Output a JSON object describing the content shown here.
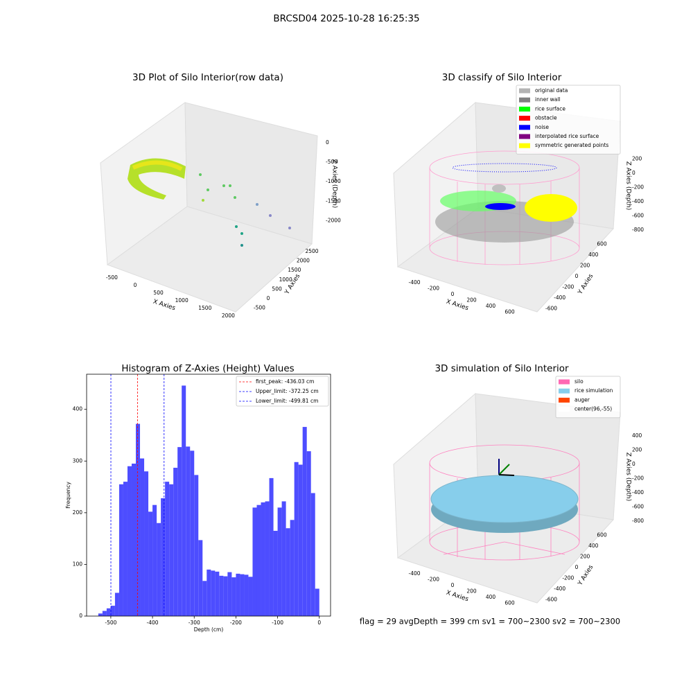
{
  "title": "BRCSD04 2025-10-28 16:25:35",
  "chart_data": [
    {
      "type": "scatter3d",
      "title": "3D Plot of Silo Interior(row data)",
      "xlabel": "X Axies",
      "ylabel": "Y Axies",
      "zlabel": "Z Axies (Depth)",
      "xticks": [
        -500,
        0,
        500,
        1000,
        1500,
        2000
      ],
      "yticks": [
        -500,
        0,
        500,
        1000,
        1500,
        2000,
        2500
      ],
      "zticks": [
        0,
        -500,
        -1000,
        -1500,
        -2000
      ]
    },
    {
      "type": "scatter3d",
      "title": "3D classify of Silo Interior",
      "xlabel": "X Axies",
      "ylabel": "Y Axies",
      "zlabel": "Z Axies (Depth)",
      "xticks": [
        -400,
        -200,
        0,
        200,
        400,
        600
      ],
      "yticks": [
        -600,
        -400,
        -200,
        0,
        200,
        400,
        600
      ],
      "zticks": [
        200,
        0,
        -200,
        -400,
        -600,
        -800
      ],
      "legend": [
        {
          "name": "original data",
          "color": "#b3b3b3"
        },
        {
          "name": "inner wall",
          "color": "#808080"
        },
        {
          "name": "rice surface",
          "color": "#00ff00"
        },
        {
          "name": "obstacle",
          "color": "#ff0000"
        },
        {
          "name": "noise",
          "color": "#0000ff"
        },
        {
          "name": "interpolated rice surface",
          "color": "#800080"
        },
        {
          "name": "symmetric generated points",
          "color": "#ffff00"
        }
      ]
    },
    {
      "type": "histogram",
      "title": "Histogram of Z-Axies (Height) Values",
      "xlabel": "Depth (cm)",
      "ylabel": "Frequency",
      "color": "#4d4dff",
      "bins": [
        -530,
        -520,
        -510,
        -500,
        -490,
        -480,
        -470,
        -460,
        -450,
        -440,
        -430,
        -420,
        -410,
        -400,
        -390,
        -380,
        -370,
        -360,
        -350,
        -340,
        -330,
        -320,
        -310,
        -300,
        -290,
        -280,
        -270,
        -260,
        -250,
        -240,
        -230,
        -220,
        -210,
        -200,
        -190,
        -180,
        -170,
        -160,
        -150,
        -140,
        -130,
        -120,
        -110,
        -100,
        -90,
        -80,
        -70,
        -60,
        -50,
        -40,
        -30,
        -20,
        -10,
        0
      ],
      "values": [
        5,
        10,
        15,
        20,
        45,
        255,
        260,
        290,
        295,
        372,
        305,
        280,
        202,
        215,
        180,
        228,
        260,
        255,
        287,
        327,
        446,
        328,
        320,
        273,
        147,
        68,
        90,
        88,
        86,
        78,
        77,
        85,
        75,
        82,
        81,
        80,
        76,
        210,
        215,
        220,
        222,
        267,
        165,
        210,
        222,
        170,
        186,
        298,
        293,
        366,
        319,
        238,
        53
      ],
      "xlim": [
        -558,
        27
      ],
      "ylim": [
        0,
        468
      ],
      "xticks": [
        -500,
        -400,
        -300,
        -200,
        -100,
        0
      ],
      "yticks": [
        0,
        100,
        200,
        300,
        400
      ],
      "lines": [
        {
          "label": "first_peak: -436.03 cm",
          "value": -436.03,
          "color": "#ff0000"
        },
        {
          "label": "Upper_limit: -372.25 cm",
          "value": -372.25,
          "color": "#0000ff"
        },
        {
          "label": "Lower_limit: -499.81 cm",
          "value": -499.81,
          "color": "#0000ff"
        }
      ]
    },
    {
      "type": "scatter3d",
      "title": "3D simulation of Silo Interior",
      "xlabel": "X Axies",
      "ylabel": "Y Axies",
      "zlabel": "Z Axies (Depth)",
      "xticks": [
        -400,
        -200,
        0,
        200,
        400,
        600
      ],
      "yticks": [
        -600,
        -400,
        -200,
        0,
        200,
        400,
        600
      ],
      "zticks": [
        400,
        200,
        0,
        -200,
        -400,
        -600,
        -800
      ],
      "legend": [
        {
          "name": "silo",
          "color": "#ff69b4"
        },
        {
          "name": "rice simulation",
          "color": "#87ceeb"
        },
        {
          "name": "auger",
          "color": "#ff4500"
        },
        {
          "name": "center(96,-55)",
          "color": "#ffffff"
        }
      ],
      "annotation": "flag = 29  avgDepth = 399 cm  sv1 = 700~2300  sv2 = 700~2300"
    }
  ]
}
